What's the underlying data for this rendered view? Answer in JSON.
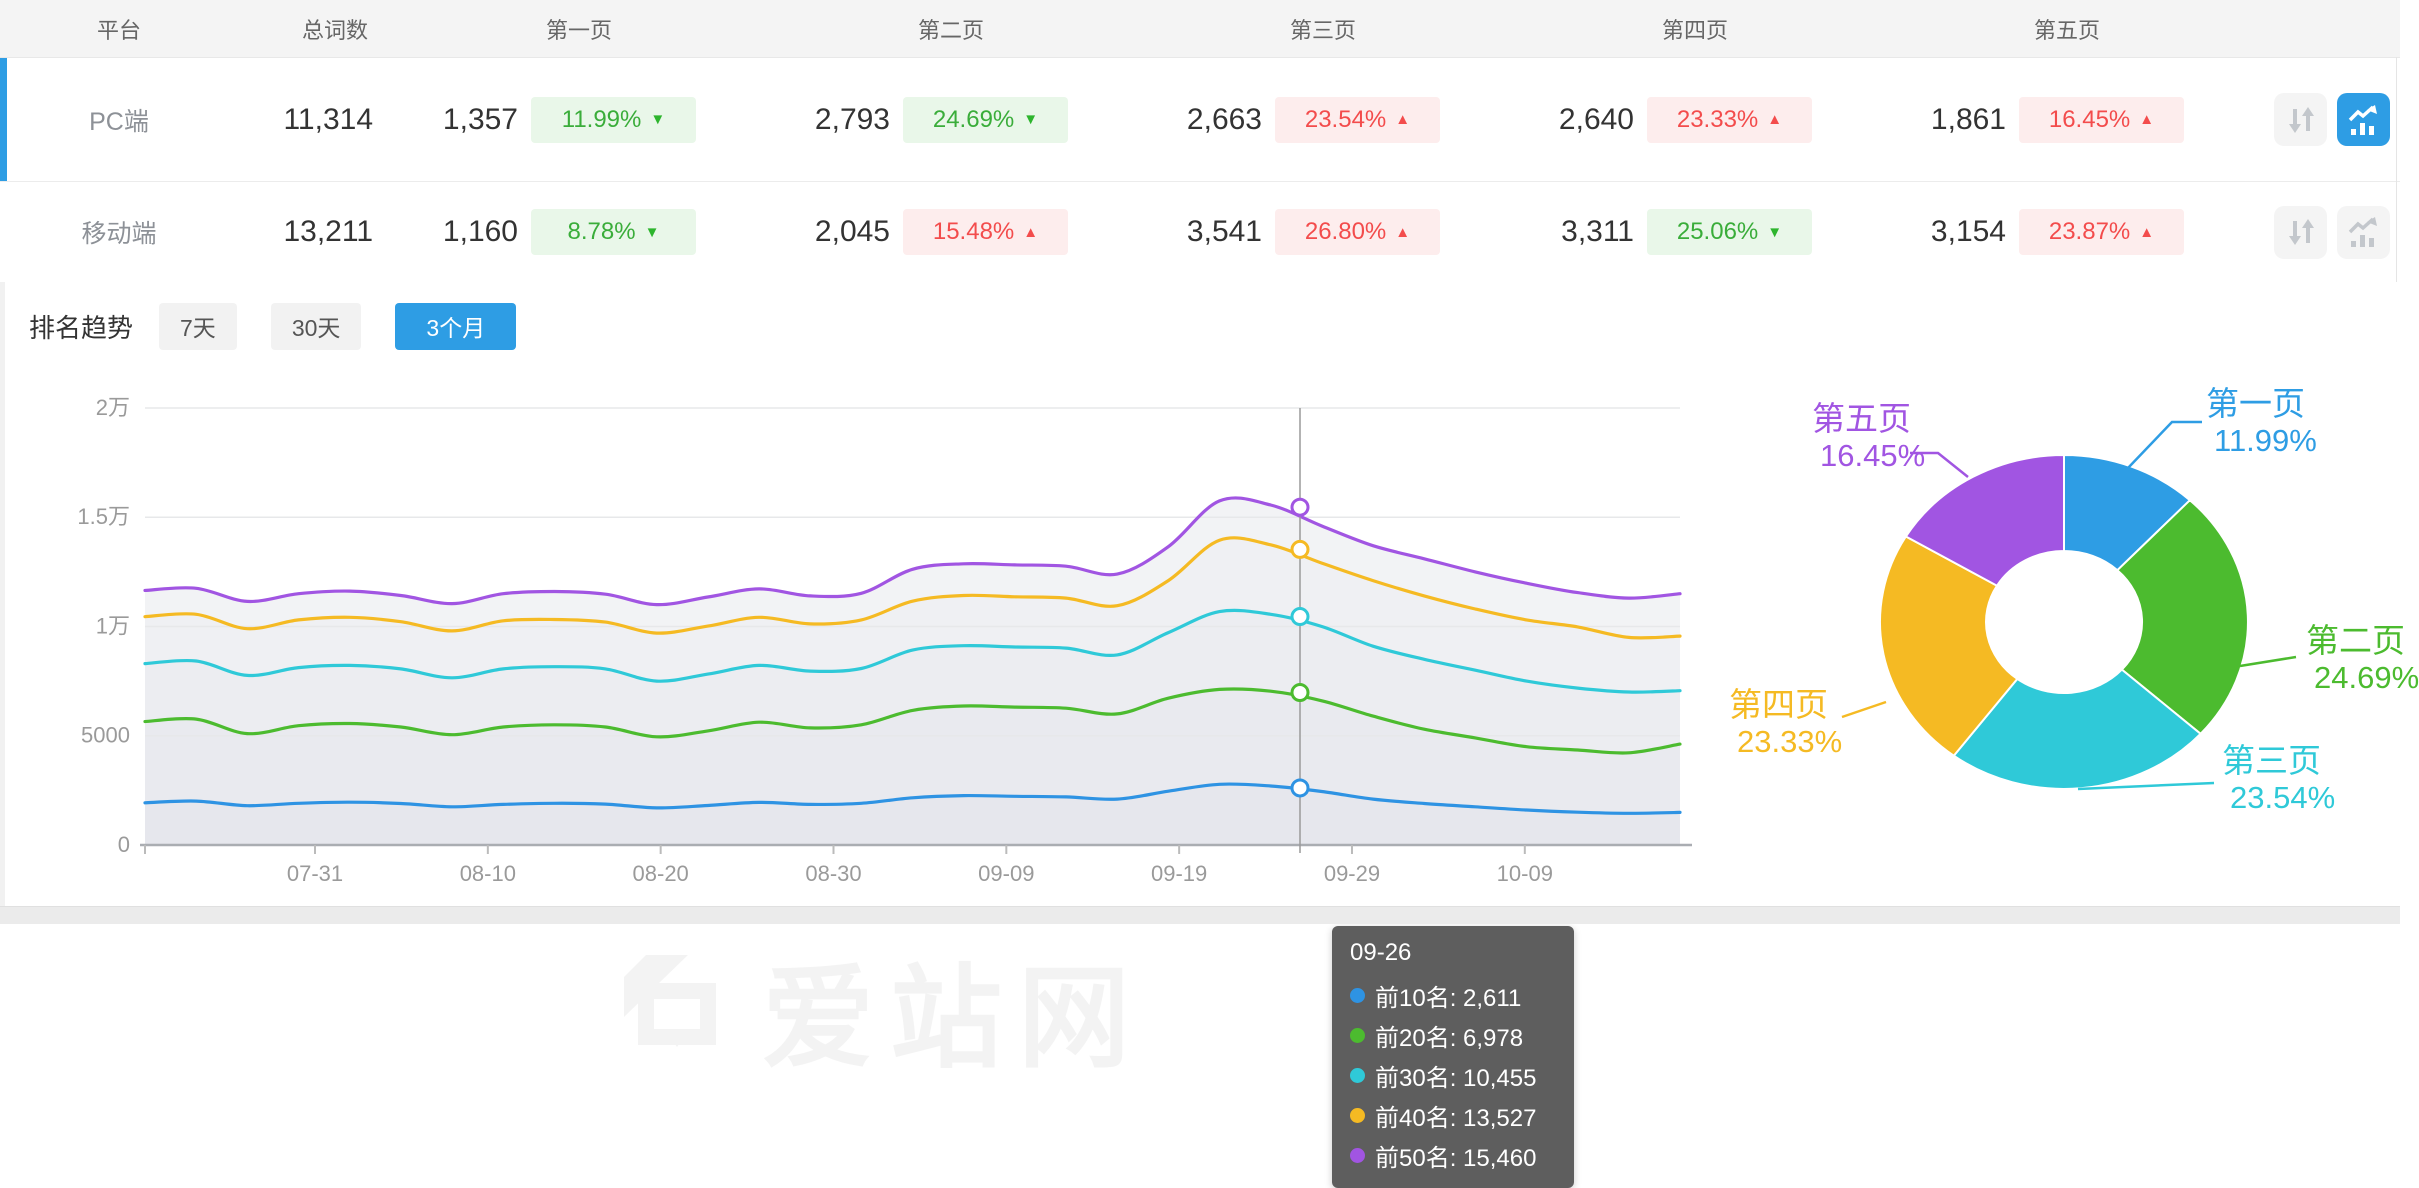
{
  "colors": {
    "accent_blue": "#2e9de4",
    "series_blue": "#2e93e3",
    "series_green": "#4cbb2f",
    "series_cyan": "#2fc9d8",
    "series_gold": "#f5ba23",
    "series_purple": "#a155e2",
    "badge_green_text": "#3aad3a",
    "badge_green_bg": "#e9f7e9",
    "badge_red_text": "#f34c4c",
    "badge_red_bg": "#fdeded"
  },
  "table": {
    "columns": [
      "平台",
      "总词数",
      "第一页",
      "第二页",
      "第三页",
      "第四页",
      "第五页"
    ],
    "rows": [
      {
        "platform": "PC端",
        "total": "11,314",
        "selected": true,
        "pages": [
          {
            "count": "1,357",
            "pct": "11.99%",
            "arrow": "▼",
            "tone": "green"
          },
          {
            "count": "2,793",
            "pct": "24.69%",
            "arrow": "▼",
            "tone": "green"
          },
          {
            "count": "2,663",
            "pct": "23.54%",
            "arrow": "▲",
            "tone": "red"
          },
          {
            "count": "2,640",
            "pct": "23.33%",
            "arrow": "▲",
            "tone": "red"
          },
          {
            "count": "1,861",
            "pct": "16.45%",
            "arrow": "▲",
            "tone": "red"
          }
        ]
      },
      {
        "platform": "移动端",
        "total": "13,211",
        "selected": false,
        "pages": [
          {
            "count": "1,160",
            "pct": "8.78%",
            "arrow": "▼",
            "tone": "green"
          },
          {
            "count": "2,045",
            "pct": "15.48%",
            "arrow": "▲",
            "tone": "red"
          },
          {
            "count": "3,541",
            "pct": "26.80%",
            "arrow": "▲",
            "tone": "red"
          },
          {
            "count": "3,311",
            "pct": "25.06%",
            "arrow": "▼",
            "tone": "green"
          },
          {
            "count": "3,154",
            "pct": "23.87%",
            "arrow": "▲",
            "tone": "red"
          }
        ]
      }
    ]
  },
  "trend": {
    "label": "排名趋势",
    "tabs": [
      {
        "label": "7天",
        "active": false
      },
      {
        "label": "30天",
        "active": false
      },
      {
        "label": "3个月",
        "active": true
      }
    ]
  },
  "watermark": {
    "text": "爱站网"
  },
  "tooltip": {
    "date": "09-26",
    "items": [
      {
        "label": "前10名",
        "value": "2,611",
        "color": "#2e93e3",
        "numeric": 2611
      },
      {
        "label": "前20名",
        "value": "6,978",
        "color": "#4cbb2f",
        "numeric": 6978
      },
      {
        "label": "前30名",
        "value": "10,455",
        "color": "#2fc9d8",
        "numeric": 10455
      },
      {
        "label": "前40名",
        "value": "13,527",
        "color": "#f5ba23",
        "numeric": 13527
      },
      {
        "label": "前50名",
        "value": "15,460",
        "color": "#a155e2",
        "numeric": 15460
      }
    ]
  },
  "chart_data": [
    {
      "type": "line",
      "title": "排名趋势 (3个月)",
      "xlabel": "",
      "ylabel": "",
      "ylim": [
        0,
        20000
      ],
      "grid": true,
      "legend_position": "none",
      "y_ticks": [
        "0",
        "5000",
        "1万",
        "1.5万",
        "2万"
      ],
      "y_tick_values": [
        0,
        5000,
        10000,
        15000,
        20000
      ],
      "x_ticks": [
        "07-31",
        "08-10",
        "08-20",
        "08-30",
        "09-09",
        "09-19",
        "09-29",
        "10-09"
      ],
      "x_sample_dates": [
        "07-21",
        "07-24",
        "07-27",
        "07-30",
        "08-02",
        "08-05",
        "08-08",
        "08-11",
        "08-14",
        "08-17",
        "08-20",
        "08-23",
        "08-26",
        "08-29",
        "09-01",
        "09-04",
        "09-07",
        "09-10",
        "09-13",
        "09-16",
        "09-19",
        "09-22",
        "09-25",
        "09-28",
        "10-01",
        "10-04",
        "10-07",
        "10-10",
        "10-13",
        "10-16",
        "10-18"
      ],
      "crosshair_date": "09-26",
      "series": [
        {
          "name": "前10名",
          "color": "#2e93e3",
          "values": [
            1930,
            2010,
            1800,
            1910,
            1960,
            1900,
            1750,
            1860,
            1910,
            1870,
            1700,
            1810,
            1950,
            1860,
            1910,
            2160,
            2260,
            2230,
            2200,
            2100,
            2460,
            2780,
            2700,
            2450,
            2100,
            1900,
            1750,
            1600,
            1500,
            1450,
            1490
          ]
        },
        {
          "name": "前20名",
          "color": "#4cbb2f",
          "values": [
            5650,
            5760,
            5100,
            5460,
            5560,
            5400,
            5050,
            5400,
            5500,
            5400,
            4950,
            5220,
            5620,
            5360,
            5500,
            6160,
            6360,
            6310,
            6260,
            6000,
            6720,
            7120,
            7040,
            6600,
            5900,
            5300,
            4900,
            4500,
            4350,
            4220,
            4620
          ]
        },
        {
          "name": "前30名",
          "color": "#2fc9d8",
          "values": [
            8300,
            8420,
            7760,
            8120,
            8220,
            8060,
            7650,
            8060,
            8160,
            8060,
            7500,
            7820,
            8220,
            7960,
            8080,
            8920,
            9120,
            9060,
            9010,
            8700,
            9720,
            10680,
            10560,
            10000,
            9100,
            8500,
            8000,
            7500,
            7180,
            7000,
            7060
          ]
        },
        {
          "name": "前40名",
          "color": "#f5ba23",
          "values": [
            10450,
            10560,
            9900,
            10300,
            10420,
            10220,
            9800,
            10260,
            10320,
            10200,
            9700,
            10020,
            10420,
            10120,
            10300,
            11160,
            11420,
            11360,
            11300,
            10950,
            12100,
            13950,
            13740,
            12900,
            12100,
            11400,
            10800,
            10300,
            9980,
            9500,
            9560
          ]
        },
        {
          "name": "前50名",
          "color": "#a155e2",
          "values": [
            11650,
            11750,
            11150,
            11500,
            11620,
            11420,
            11050,
            11500,
            11600,
            11480,
            11000,
            11350,
            11720,
            11400,
            11520,
            12620,
            12870,
            12820,
            12760,
            12400,
            13650,
            15750,
            15560,
            14600,
            13700,
            13100,
            12500,
            11980,
            11550,
            11300,
            11500
          ]
        }
      ]
    },
    {
      "type": "pie",
      "donut": true,
      "labels": [
        "第一页",
        "第二页",
        "第三页",
        "第四页",
        "第五页"
      ],
      "values": [
        11.99,
        24.69,
        23.54,
        23.33,
        16.45
      ],
      "display": [
        "11.99%",
        "24.69%",
        "23.54%",
        "23.33%",
        "16.45%"
      ],
      "colors": [
        "#2e9de4",
        "#4cbb2f",
        "#2fc9d8",
        "#f5ba23",
        "#a155e2"
      ]
    }
  ]
}
